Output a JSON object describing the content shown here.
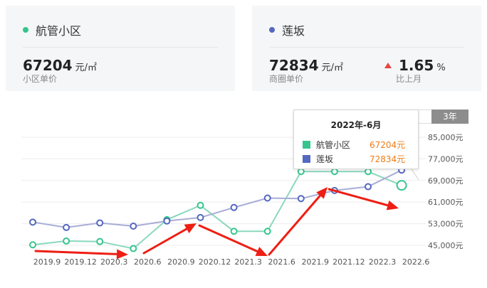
{
  "cards": {
    "left": {
      "name": "航管小区",
      "dot_color": "#35c58d",
      "price": "67204",
      "unit": "元/㎡",
      "label": "小区单价"
    },
    "right": {
      "name": "莲坂",
      "dot_color": "#5468c0",
      "price": "72834",
      "unit": "元/㎡",
      "label": "商圈单价",
      "change_value": "1.65",
      "change_unit": "%",
      "change_label": "比上月",
      "change_color": "#e5473e"
    }
  },
  "range_button": "3年",
  "tooltip": {
    "title": "2022年-6月",
    "rows": [
      {
        "name": "航管小区",
        "value": "67204元",
        "color": "#35c58d"
      },
      {
        "name": "莲坂",
        "value": "72834元",
        "color": "#5468c0"
      }
    ]
  },
  "chart_data": {
    "type": "line",
    "x": [
      "2019.9",
      "2019.12",
      "2020.3",
      "2020.6",
      "2020.9",
      "2020.12",
      "2021.3",
      "2021.6",
      "2021.9",
      "2021.12",
      "2022.3",
      "2022.6"
    ],
    "x_ticks": [
      "2019.9",
      "2019.12",
      "2020.3",
      "2020.6",
      "2020.9",
      "2020.12",
      "2021.3",
      "2021.6",
      "2021.9",
      "2021.12",
      "2022.3",
      "2022.6"
    ],
    "y_ticks": [
      "45,000元",
      "53,000元",
      "61,000元",
      "69,000元",
      "77,000元",
      "85,000元"
    ],
    "ylim": [
      45000,
      85000
    ],
    "series": [
      {
        "name": "航管小区",
        "color": "#8ad8bd",
        "marker_color": "#35c58d",
        "values": [
          45200,
          46600,
          46400,
          43800,
          54500,
          59800,
          50200,
          50200,
          72300,
          72300,
          72300,
          67204
        ]
      },
      {
        "name": "莲坂",
        "color": "#a7acd6",
        "marker_color": "#5468c0",
        "values": [
          53600,
          51600,
          53300,
          52100,
          54000,
          55300,
          59000,
          62500,
          62300,
          65300,
          66700,
          72834
        ]
      }
    ]
  }
}
